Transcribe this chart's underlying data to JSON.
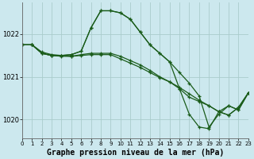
{
  "title": "Graphe pression niveau de la mer (hPa)",
  "bg_color": "#cce8ee",
  "grid_color": "#aacccc",
  "line_color": "#1a5c1a",
  "series": [
    [
      1021.75,
      1021.75,
      1021.55,
      1021.5,
      1021.5,
      1021.52,
      1021.6,
      1022.15,
      1022.55,
      1022.55,
      1022.5,
      1022.35,
      1022.05,
      1021.75,
      1021.55,
      1021.35,
      1021.1,
      1020.85,
      1020.55,
      1019.82,
      1020.12,
      1020.32,
      1020.22,
      1020.62
    ],
    [
      1021.75,
      1021.75,
      1021.55,
      1021.5,
      1021.48,
      1021.48,
      1021.52,
      1021.55,
      1021.55,
      1021.55,
      1021.48,
      1021.38,
      1021.28,
      1021.15,
      1021.0,
      1020.88,
      1020.72,
      1020.52,
      1020.42,
      1020.32,
      1020.18,
      1020.1,
      1020.28,
      1020.62
    ],
    [
      1021.75,
      1021.75,
      1021.58,
      1021.52,
      1021.5,
      1021.48,
      1021.5,
      1021.52,
      1021.52,
      1021.52,
      1021.42,
      1021.32,
      1021.22,
      1021.1,
      1020.98,
      1020.88,
      1020.75,
      1020.6,
      1020.45,
      1020.32,
      1020.18,
      1020.1,
      1020.28,
      1020.62
    ],
    [
      1021.75,
      1021.75,
      1021.55,
      1021.5,
      1021.5,
      1021.52,
      1021.6,
      1022.15,
      1022.55,
      1022.55,
      1022.5,
      1022.35,
      1022.05,
      1021.75,
      1021.55,
      1021.35,
      1020.72,
      1020.12,
      1019.82,
      1019.78,
      1020.18,
      1020.32,
      1020.22,
      1020.62
    ]
  ],
  "xlim": [
    0,
    23
  ],
  "ylim": [
    1019.55,
    1022.75
  ],
  "yticks": [
    1020,
    1021,
    1022
  ],
  "xticks": [
    0,
    1,
    2,
    3,
    4,
    5,
    6,
    7,
    8,
    9,
    10,
    11,
    12,
    13,
    14,
    15,
    16,
    17,
    18,
    19,
    20,
    21,
    22,
    23
  ],
  "tick_fontsize": 5.0,
  "title_fontsize": 7.0,
  "linewidth": 0.9,
  "markersize": 2.8,
  "marker": "+"
}
